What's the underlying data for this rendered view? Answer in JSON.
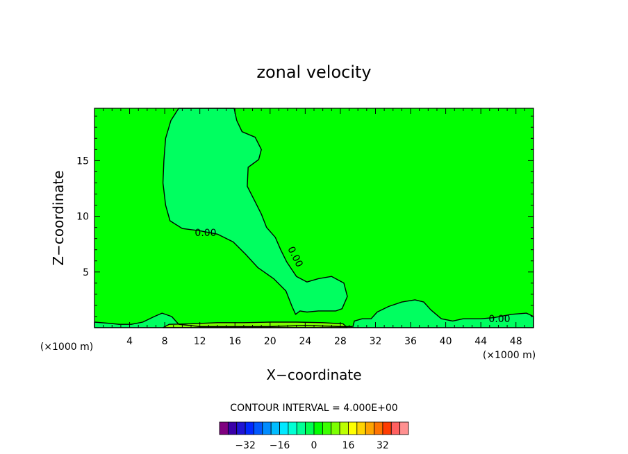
{
  "chart_data": {
    "type": "contour",
    "title": "zonal velocity",
    "xlabel": "X−coordinate",
    "ylabel": "Z−coordinate",
    "x_unit_label": "(×1000 m)",
    "x_unit_label_right": "(×1000 m)",
    "xlim": [
      0,
      50
    ],
    "ylim": [
      0,
      19.7
    ],
    "x_ticks": [
      4,
      8,
      12,
      16,
      20,
      24,
      28,
      32,
      36,
      40,
      44,
      48
    ],
    "x_tick_labels": [
      "4",
      "8",
      "12",
      "16",
      "20",
      "24",
      "28",
      "32",
      "36",
      "40",
      "44",
      "48"
    ],
    "y_ticks": [
      5,
      10,
      15
    ],
    "y_tick_labels": [
      "5",
      "10",
      "15"
    ],
    "contour_interval_text": "CONTOUR INTERVAL = 4.000E+00",
    "contour_labels": [
      "0.00",
      "0.00",
      "0.00"
    ],
    "contours": [
      {
        "level": 0,
        "fill": "negative",
        "points": [
          [
            9.6,
            19.7
          ],
          [
            8.7,
            18.6
          ],
          [
            8.1,
            17.0
          ],
          [
            7.9,
            15.0
          ],
          [
            7.8,
            13.0
          ],
          [
            8.1,
            11.0
          ],
          [
            8.6,
            9.6
          ],
          [
            10.0,
            8.9
          ],
          [
            12.0,
            8.7
          ],
          [
            14.0,
            8.4
          ],
          [
            15.8,
            7.7
          ],
          [
            17.2,
            6.6
          ],
          [
            18.6,
            5.4
          ],
          [
            20.4,
            4.4
          ],
          [
            21.8,
            3.3
          ],
          [
            22.5,
            1.9
          ],
          [
            22.9,
            1.2
          ],
          [
            23.4,
            1.5
          ],
          [
            24.2,
            1.4
          ],
          [
            25.5,
            1.5
          ],
          [
            27.5,
            1.5
          ],
          [
            28.2,
            1.7
          ],
          [
            28.8,
            2.8
          ],
          [
            28.4,
            4.0
          ],
          [
            27.0,
            4.6
          ],
          [
            25.5,
            4.4
          ],
          [
            24.2,
            4.1
          ],
          [
            23.0,
            4.6
          ],
          [
            21.9,
            5.9
          ],
          [
            21.2,
            7.0
          ],
          [
            20.6,
            8.1
          ],
          [
            19.6,
            9.0
          ],
          [
            19.0,
            10.2
          ],
          [
            18.3,
            11.3
          ],
          [
            17.4,
            12.7
          ],
          [
            17.5,
            14.4
          ],
          [
            18.7,
            15.1
          ],
          [
            19.0,
            16.0
          ],
          [
            18.3,
            17.1
          ],
          [
            16.8,
            17.6
          ],
          [
            16.2,
            18.6
          ],
          [
            15.9,
            19.7
          ]
        ]
      },
      {
        "level": 0,
        "fill": "negative",
        "points": [
          [
            29.4,
            0
          ],
          [
            29.6,
            0.6
          ],
          [
            30.5,
            0.8
          ],
          [
            31.5,
            0.8
          ],
          [
            32.2,
            1.4
          ],
          [
            33.5,
            1.9
          ],
          [
            35.0,
            2.3
          ],
          [
            36.5,
            2.5
          ],
          [
            37.5,
            2.3
          ],
          [
            38.3,
            1.6
          ],
          [
            39.5,
            0.8
          ],
          [
            40.8,
            0.6
          ],
          [
            42.0,
            0.8
          ],
          [
            44.0,
            0.8
          ],
          [
            45.5,
            0.9
          ],
          [
            47.5,
            1.2
          ],
          [
            49.2,
            1.3
          ],
          [
            50,
            1.0
          ],
          [
            50,
            0
          ]
        ]
      },
      {
        "level": 0,
        "fill": "negative",
        "points": [
          [
            0,
            0.5
          ],
          [
            1.5,
            0.4
          ],
          [
            2.8,
            0.3
          ],
          [
            4.2,
            0.3
          ],
          [
            5.5,
            0.5
          ],
          [
            6.8,
            1.0
          ],
          [
            7.7,
            1.3
          ],
          [
            8.8,
            1.0
          ],
          [
            9.6,
            0.3
          ],
          [
            12.0,
            0.1
          ],
          [
            16.0,
            0.1
          ],
          [
            20.0,
            0.1
          ],
          [
            24.0,
            0.2
          ],
          [
            28.0,
            0.1
          ],
          [
            29.3,
            0.1
          ],
          [
            29.3,
            0
          ],
          [
            0,
            0
          ]
        ]
      },
      {
        "level": 4,
        "fill": "positive",
        "points": [
          [
            7.8,
            0
          ],
          [
            8.5,
            0.3
          ],
          [
            11.0,
            0.35
          ],
          [
            14.0,
            0.45
          ],
          [
            17.0,
            0.45
          ],
          [
            20.0,
            0.5
          ],
          [
            23.0,
            0.5
          ],
          [
            26.0,
            0.45
          ],
          [
            28.3,
            0.35
          ],
          [
            28.8,
            0
          ],
          [
            7.8,
            0
          ]
        ]
      }
    ],
    "colorbar": {
      "ticks": [
        -32,
        -16,
        0,
        16,
        32
      ],
      "tick_labels": [
        "−32",
        "−16",
        "0",
        "16",
        "32"
      ],
      "colors": [
        "#7f007f",
        "#3a00a8",
        "#1f14d4",
        "#0028ff",
        "#0058ff",
        "#008cff",
        "#00bcff",
        "#00e8ff",
        "#00ffd4",
        "#00ff96",
        "#00ff50",
        "#00ff00",
        "#3cff00",
        "#7cff00",
        "#bcff00",
        "#ffff00",
        "#ffd400",
        "#ffa400",
        "#ff7400",
        "#ff3c00",
        "#ff6060",
        "#ff9090"
      ]
    }
  },
  "colors": {
    "zero_band": "#00ff00",
    "negative_band": "#00ff60",
    "positive_band": "#7cff00",
    "line": "#000000"
  }
}
